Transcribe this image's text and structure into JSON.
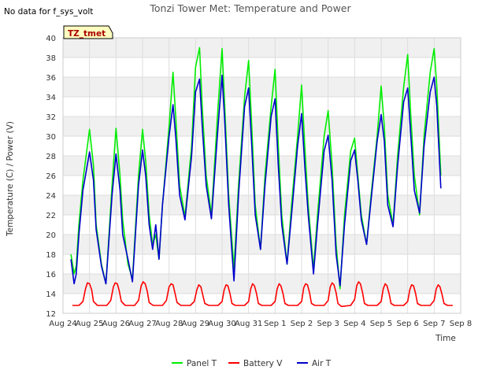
{
  "chart_data": {
    "type": "line",
    "title": "Tonzi Tower Met: Temperature and Power",
    "no_data_note": "No data for f_sys_volt",
    "site_label": "TZ_tmet",
    "xlabel": "Time",
    "ylabel": "Temperature (C) / Power (V)",
    "ylim": [
      12,
      40
    ],
    "xlim": [
      0,
      15
    ],
    "yticks": [
      12,
      14,
      16,
      18,
      20,
      22,
      24,
      26,
      28,
      30,
      32,
      34,
      36,
      38,
      40
    ],
    "xtick_values": [
      0,
      1,
      2,
      3,
      4,
      5,
      6,
      7,
      8,
      9,
      10,
      11,
      12,
      13,
      14,
      15
    ],
    "xtick_labels": [
      "Aug 24",
      "Aug 25",
      "Aug 26",
      "Aug 27",
      "Aug 28",
      "Aug 29",
      "Aug 30",
      "Aug 31",
      "Sep 1",
      "Sep 2",
      "Sep 3",
      "Sep 4",
      "Sep 5",
      "Sep 6",
      "Sep 7",
      "Sep 8"
    ],
    "grid": true,
    "legend_position": "bottom-center",
    "series": [
      {
        "name": "Panel T",
        "color": "#00ee00",
        "x": [
          0.3,
          0.42,
          0.5,
          0.6,
          0.75,
          1.0,
          1.15,
          1.25,
          1.45,
          1.62,
          1.85,
          2.0,
          2.15,
          2.25,
          2.45,
          2.62,
          2.85,
          3.0,
          3.12,
          3.25,
          3.38,
          3.5,
          3.62,
          3.75,
          4.0,
          4.15,
          4.25,
          4.4,
          4.6,
          4.85,
          5.0,
          5.15,
          5.25,
          5.4,
          5.6,
          5.85,
          6.0,
          6.1,
          6.25,
          6.45,
          6.62,
          6.85,
          7.0,
          7.12,
          7.25,
          7.45,
          7.62,
          7.85,
          8.0,
          8.12,
          8.25,
          8.45,
          8.62,
          8.85,
          9.0,
          9.12,
          9.25,
          9.45,
          9.6,
          9.85,
          10.0,
          10.15,
          10.3,
          10.45,
          10.62,
          10.85,
          11.0,
          11.12,
          11.25,
          11.45,
          11.62,
          11.85,
          12.0,
          12.12,
          12.25,
          12.45,
          12.62,
          12.85,
          13.0,
          13.12,
          13.25,
          13.45,
          13.62,
          13.85,
          14.0,
          14.1,
          14.25
        ],
        "y": [
          18.0,
          16.0,
          16.8,
          21.0,
          25.5,
          30.7,
          27.0,
          21.0,
          17.0,
          15.0,
          25.0,
          30.8,
          26.0,
          21.5,
          17.0,
          15.5,
          26.0,
          30.7,
          27.5,
          22.0,
          19.0,
          20.0,
          17.5,
          23.0,
          31.0,
          36.5,
          32.0,
          25.0,
          21.8,
          29.0,
          37.0,
          39.0,
          33.0,
          26.0,
          22.0,
          33.0,
          38.9,
          33.0,
          24.0,
          16.5,
          25.0,
          34.0,
          37.7,
          31.0,
          23.0,
          18.5,
          26.0,
          33.0,
          36.8,
          29.0,
          22.0,
          17.0,
          23.0,
          30.0,
          35.2,
          29.0,
          23.0,
          16.5,
          22.0,
          30.0,
          32.6,
          27.0,
          19.0,
          14.5,
          22.0,
          28.5,
          29.8,
          26.0,
          22.0,
          19.0,
          24.0,
          30.0,
          35.1,
          31.0,
          24.0,
          21.0,
          28.0,
          35.0,
          38.3,
          32.0,
          26.0,
          22.0,
          30.0,
          36.5,
          38.9,
          35.0,
          26.0
        ]
      },
      {
        "name": "Battery V",
        "color": "#ff0000",
        "x": [
          0.35,
          0.6,
          0.75,
          0.85,
          0.92,
          1.0,
          1.08,
          1.15,
          1.3,
          1.65,
          1.8,
          1.9,
          1.97,
          2.05,
          2.12,
          2.2,
          2.35,
          2.7,
          2.85,
          2.95,
          3.02,
          3.1,
          3.18,
          3.25,
          3.4,
          3.75,
          3.9,
          4.0,
          4.08,
          4.15,
          4.22,
          4.3,
          4.45,
          4.8,
          4.95,
          5.05,
          5.12,
          5.2,
          5.27,
          5.35,
          5.5,
          5.85,
          6.0,
          6.08,
          6.15,
          6.22,
          6.3,
          6.37,
          6.5,
          6.85,
          7.0,
          7.08,
          7.15,
          7.22,
          7.3,
          7.37,
          7.5,
          7.85,
          8.0,
          8.08,
          8.15,
          8.22,
          8.3,
          8.37,
          8.5,
          8.85,
          9.0,
          9.08,
          9.15,
          9.22,
          9.3,
          9.37,
          9.5,
          9.85,
          10.0,
          10.08,
          10.15,
          10.22,
          10.3,
          10.37,
          10.5,
          10.85,
          11.0,
          11.08,
          11.15,
          11.22,
          11.3,
          11.37,
          11.5,
          11.85,
          12.0,
          12.08,
          12.15,
          12.22,
          12.3,
          12.37,
          12.5,
          12.85,
          13.0,
          13.08,
          13.15,
          13.22,
          13.3,
          13.37,
          13.5,
          13.85,
          14.0,
          14.08,
          14.15,
          14.22,
          14.3,
          14.37,
          14.5,
          14.7
        ],
        "y": [
          12.8,
          12.8,
          13.2,
          14.5,
          15.1,
          15.0,
          14.4,
          13.2,
          12.8,
          12.8,
          13.3,
          14.7,
          15.1,
          15.0,
          14.3,
          13.2,
          12.8,
          12.8,
          13.3,
          14.8,
          15.2,
          15.0,
          14.2,
          13.1,
          12.8,
          12.8,
          13.3,
          14.7,
          15.0,
          14.9,
          14.1,
          13.1,
          12.8,
          12.8,
          13.2,
          14.4,
          14.9,
          14.7,
          13.9,
          13.0,
          12.8,
          12.8,
          13.2,
          14.4,
          14.9,
          14.8,
          14.0,
          13.0,
          12.8,
          12.8,
          13.2,
          14.5,
          15.0,
          14.8,
          14.0,
          13.0,
          12.8,
          12.8,
          13.2,
          14.5,
          15.0,
          14.8,
          14.0,
          13.0,
          12.8,
          12.8,
          13.2,
          14.6,
          15.0,
          14.9,
          14.1,
          13.0,
          12.8,
          12.8,
          13.3,
          14.7,
          15.1,
          14.9,
          14.1,
          13.0,
          12.7,
          12.8,
          13.4,
          14.8,
          15.2,
          15.0,
          14.1,
          13.0,
          12.8,
          12.8,
          13.2,
          14.5,
          15.0,
          14.8,
          14.0,
          13.0,
          12.8,
          12.8,
          13.2,
          14.4,
          14.9,
          14.8,
          14.0,
          13.0,
          12.8,
          12.8,
          13.3,
          14.5,
          14.9,
          14.7,
          13.9,
          13.0,
          12.8,
          12.8
        ]
      },
      {
        "name": "Air T",
        "color": "#0000cc",
        "x": [
          0.3,
          0.42,
          0.5,
          0.6,
          0.75,
          1.0,
          1.15,
          1.25,
          1.45,
          1.62,
          1.85,
          2.0,
          2.15,
          2.25,
          2.45,
          2.62,
          2.85,
          3.0,
          3.12,
          3.25,
          3.38,
          3.5,
          3.62,
          3.75,
          4.0,
          4.15,
          4.25,
          4.4,
          4.6,
          4.85,
          5.0,
          5.15,
          5.25,
          5.4,
          5.6,
          5.85,
          6.0,
          6.1,
          6.25,
          6.45,
          6.62,
          6.85,
          7.0,
          7.12,
          7.25,
          7.45,
          7.62,
          7.85,
          8.0,
          8.12,
          8.25,
          8.45,
          8.62,
          8.85,
          9.0,
          9.12,
          9.25,
          9.45,
          9.6,
          9.85,
          10.0,
          10.15,
          10.3,
          10.45,
          10.62,
          10.85,
          11.0,
          11.12,
          11.25,
          11.45,
          11.62,
          11.85,
          12.0,
          12.12,
          12.25,
          12.45,
          12.62,
          12.85,
          13.0,
          13.12,
          13.25,
          13.45,
          13.62,
          13.85,
          14.0,
          14.1,
          14.25
        ],
        "y": [
          17.5,
          15.0,
          16.0,
          20.0,
          24.5,
          28.4,
          25.5,
          20.5,
          16.8,
          15.0,
          24.0,
          28.2,
          24.5,
          20.0,
          17.5,
          15.2,
          25.0,
          28.6,
          26.0,
          21.0,
          18.5,
          21.0,
          17.5,
          23.0,
          30.0,
          33.2,
          30.0,
          24.0,
          21.5,
          28.0,
          34.5,
          35.8,
          31.0,
          25.0,
          21.6,
          31.0,
          36.2,
          31.5,
          23.0,
          15.3,
          24.0,
          33.0,
          34.9,
          29.0,
          22.0,
          18.5,
          25.0,
          32.0,
          33.8,
          27.0,
          21.0,
          17.0,
          22.0,
          29.0,
          32.3,
          27.0,
          22.0,
          16.0,
          21.0,
          28.5,
          30.1,
          25.5,
          18.0,
          14.8,
          21.0,
          27.5,
          28.6,
          25.5,
          21.5,
          19.0,
          23.5,
          29.5,
          32.2,
          29.5,
          23.0,
          20.8,
          27.0,
          33.5,
          34.9,
          30.0,
          24.5,
          22.2,
          29.0,
          34.5,
          36.0,
          33.0,
          24.7
        ]
      }
    ]
  }
}
